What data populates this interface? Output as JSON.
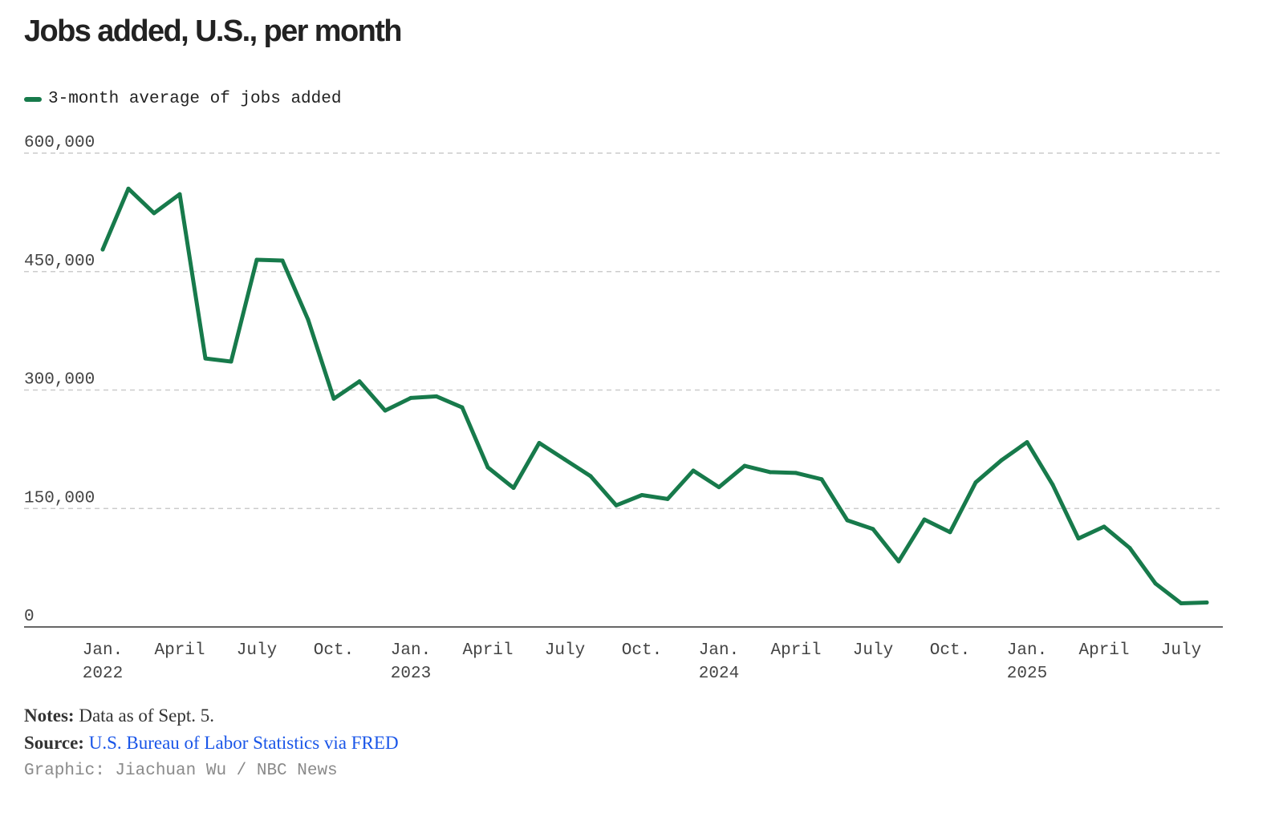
{
  "title": "Jobs added, U.S., per month",
  "legend": {
    "label": "3-month average of jobs added",
    "color": "#177a4b"
  },
  "colors": {
    "line": "#177a4b",
    "grid": "#cccccc",
    "axis": "#333333"
  },
  "chart_data": {
    "type": "line",
    "title": "Jobs added, U.S., per month",
    "xlabel": "",
    "ylabel": "",
    "ylim": [
      0,
      600000
    ],
    "yticks": [
      0,
      150000,
      300000,
      450000,
      600000
    ],
    "ytick_labels": [
      "0",
      "150,000",
      "300,000",
      "450,000",
      "600,000"
    ],
    "grid": true,
    "legend_position": "top-left",
    "xticks": [
      {
        "month_index": 0,
        "label": "Jan.",
        "year": "2022"
      },
      {
        "month_index": 3,
        "label": "April",
        "year": ""
      },
      {
        "month_index": 6,
        "label": "July",
        "year": ""
      },
      {
        "month_index": 9,
        "label": "Oct.",
        "year": ""
      },
      {
        "month_index": 12,
        "label": "Jan.",
        "year": "2023"
      },
      {
        "month_index": 15,
        "label": "April",
        "year": ""
      },
      {
        "month_index": 18,
        "label": "July",
        "year": ""
      },
      {
        "month_index": 21,
        "label": "Oct.",
        "year": ""
      },
      {
        "month_index": 24,
        "label": "Jan.",
        "year": "2024"
      },
      {
        "month_index": 27,
        "label": "April",
        "year": ""
      },
      {
        "month_index": 30,
        "label": "July",
        "year": ""
      },
      {
        "month_index": 33,
        "label": "Oct.",
        "year": ""
      },
      {
        "month_index": 36,
        "label": "Jan.",
        "year": "2025"
      },
      {
        "month_index": 39,
        "label": "April",
        "year": ""
      },
      {
        "month_index": 42,
        "label": "July",
        "year": ""
      }
    ],
    "series": [
      {
        "name": "3-month average of jobs added",
        "x": [
          "2022-01",
          "2022-02",
          "2022-03",
          "2022-04",
          "2022-05",
          "2022-06",
          "2022-07",
          "2022-08",
          "2022-09",
          "2022-10",
          "2022-11",
          "2022-12",
          "2023-01",
          "2023-02",
          "2023-03",
          "2023-04",
          "2023-05",
          "2023-06",
          "2023-07",
          "2023-08",
          "2023-09",
          "2023-10",
          "2023-11",
          "2023-12",
          "2024-01",
          "2024-02",
          "2024-03",
          "2024-04",
          "2024-05",
          "2024-06",
          "2024-07",
          "2024-08",
          "2024-09",
          "2024-10",
          "2024-11",
          "2024-12",
          "2025-01",
          "2025-02",
          "2025-03",
          "2025-04",
          "2025-05",
          "2025-06",
          "2025-07",
          "2025-08"
        ],
        "values": [
          478000,
          555000,
          524000,
          548000,
          340000,
          336000,
          465000,
          464000,
          389000,
          289000,
          311000,
          274000,
          290000,
          292000,
          278000,
          202000,
          176000,
          233000,
          212000,
          191000,
          154000,
          167000,
          162000,
          198000,
          177000,
          204000,
          196000,
          195000,
          187000,
          135000,
          124000,
          83000,
          136000,
          120000,
          183000,
          211000,
          234000,
          180000,
          112000,
          127000,
          100000,
          55000,
          30000,
          31000
        ]
      }
    ]
  },
  "footer": {
    "notes_label": "Notes:",
    "notes_text": "Data as of Sept. 5.",
    "source_label": "Source:",
    "source_text": "U.S. Bureau of Labor Statistics via FRED",
    "credit": "Graphic: Jiachuan Wu / NBC News"
  }
}
